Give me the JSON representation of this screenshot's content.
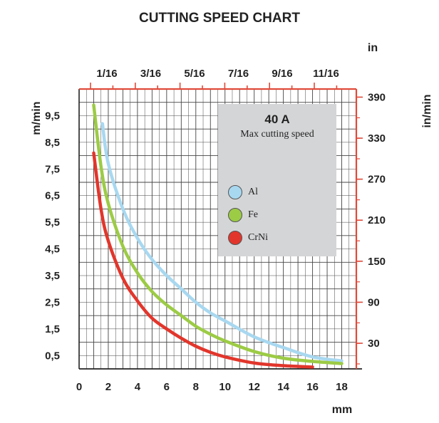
{
  "chart_data": {
    "type": "line",
    "title": "CUTTING SPEED CHART",
    "xlabel": "mm",
    "ylabel": "m/min",
    "x2label": "in",
    "y2label": "in/min",
    "xlim": [
      0,
      19
    ],
    "ylim": [
      0,
      10.5
    ],
    "x_ticks": [
      "0",
      "2",
      "4",
      "6",
      "8",
      "10",
      "12",
      "14",
      "16",
      "18"
    ],
    "y_ticks": [
      "0,5",
      "1,5",
      "2,5",
      "3,5",
      "4,5",
      "5,5",
      "6,5",
      "7,5",
      "8,5",
      "9,5"
    ],
    "x2_ticks": [
      "1/16",
      "3/16",
      "5/16",
      "7/16",
      "9/16",
      "11/16"
    ],
    "y2_ticks": [
      "30",
      "90",
      "150",
      "210",
      "270",
      "330",
      "390"
    ],
    "grid": true,
    "legend": {
      "title": "40 A",
      "subtitle": "Max cutting speed",
      "position": "top-right"
    },
    "series": [
      {
        "name": "Al",
        "color": "#a8d8f0",
        "x": [
          1.6,
          2,
          3,
          4,
          5,
          6,
          7,
          8,
          9,
          10,
          12,
          14,
          16,
          18
        ],
        "y": [
          9.2,
          7.7,
          6.0,
          4.9,
          4.1,
          3.5,
          3.0,
          2.5,
          2.1,
          1.8,
          1.2,
          0.8,
          0.45,
          0.3
        ]
      },
      {
        "name": "Fe",
        "color": "#9ccb45",
        "x": [
          1,
          1.5,
          2,
          3,
          4,
          5,
          6,
          7,
          8,
          9,
          10,
          12,
          14,
          16,
          18
        ],
        "y": [
          9.9,
          7.6,
          6.2,
          4.6,
          3.6,
          2.9,
          2.4,
          2.0,
          1.6,
          1.3,
          1.05,
          0.65,
          0.4,
          0.28,
          0.2
        ]
      },
      {
        "name": "CrNi",
        "color": "#e2362c",
        "x": [
          1,
          1.5,
          2,
          3,
          4,
          5,
          6,
          7,
          8,
          9,
          10,
          12,
          14,
          16
        ],
        "y": [
          8.1,
          6.0,
          4.8,
          3.4,
          2.55,
          1.9,
          1.5,
          1.15,
          0.85,
          0.62,
          0.45,
          0.22,
          0.12,
          0.07
        ]
      }
    ]
  }
}
